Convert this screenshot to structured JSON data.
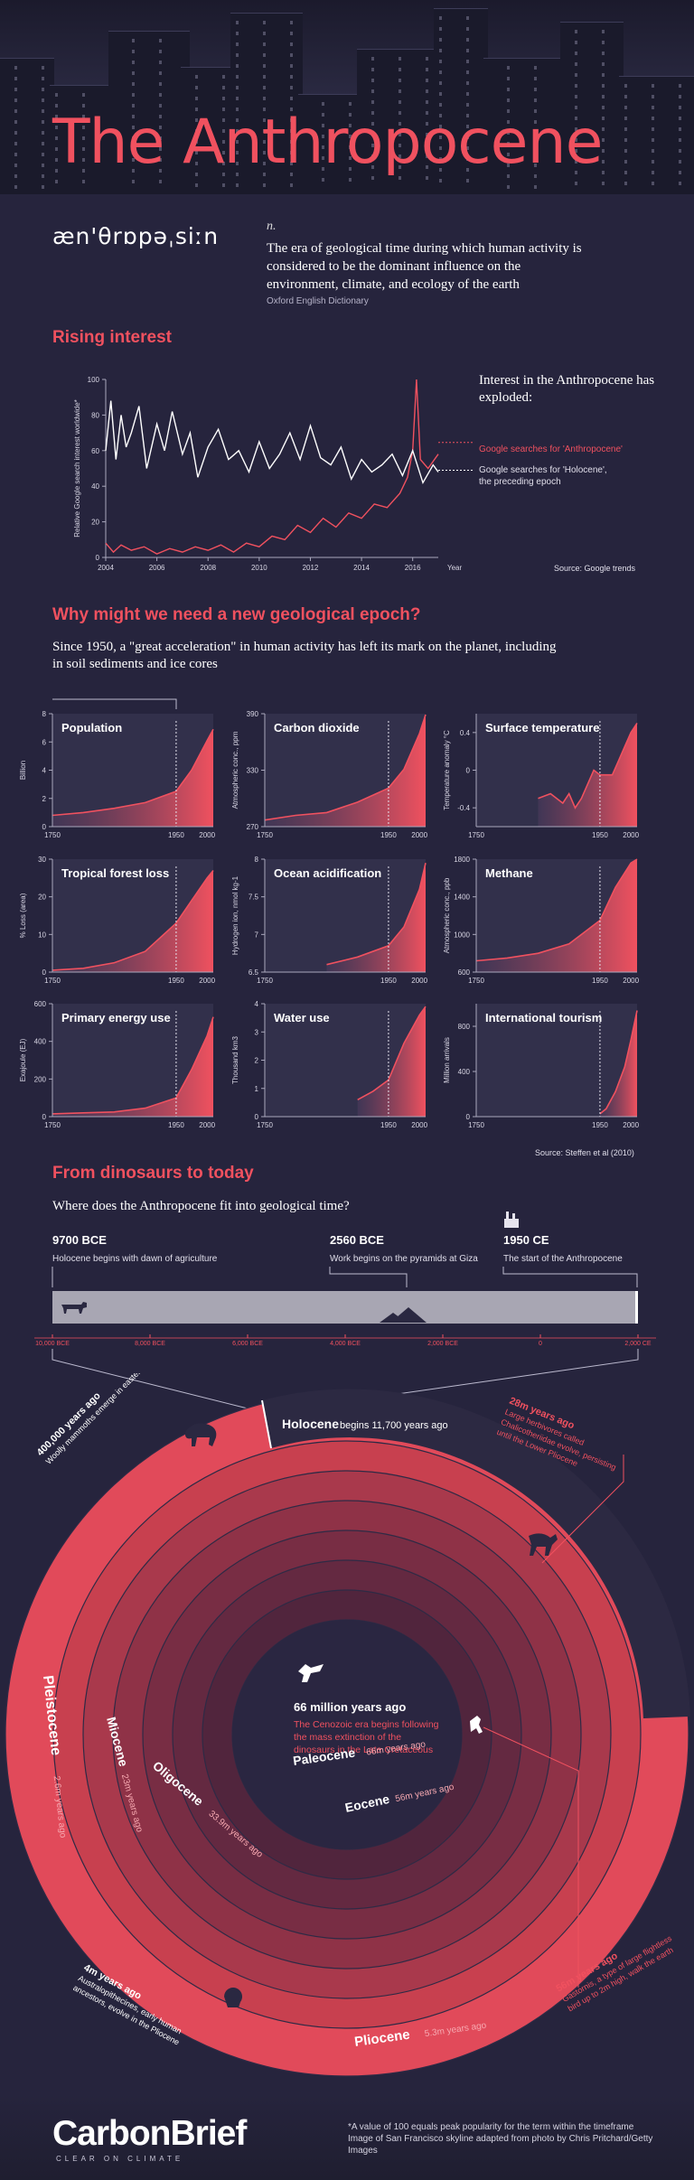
{
  "header": {
    "title": "The Anthropocene"
  },
  "definition": {
    "phonetic": "æn'θrɒpəˌsiːn",
    "part_of_speech": "n.",
    "text": "The era of geological time during which human activity is considered to be the dominant influence on the environment, climate, and ecology of the earth",
    "source": "Oxford English Dictionary"
  },
  "rising": {
    "title": "Rising interest",
    "annotation": "Interest in the Anthropocene has exploded:",
    "legend_anthropocene": "Google searches for 'Anthropocene'",
    "legend_holocene_1": "Google searches for 'Holocene',",
    "legend_holocene_2": "the preceding epoch",
    "ylabel": "Relative Google search interest worldwide*",
    "xlabel": "Year",
    "source": "Source: Google trends",
    "colors": {
      "anthropocene": "#f0515f",
      "holocene": "#ffffff"
    }
  },
  "epoch": {
    "title": "Why might we need a new geological epoch?",
    "intro": "Since 1950, a \"great acceleration\" in human activity has left its mark on the planet, including in soil sediments and ice cores",
    "source": "Source: Steffen et al (2010)"
  },
  "geo": {
    "title": "From dinosaurs to today",
    "question": "Where does the Anthropocene fit into geological time?",
    "events": [
      {
        "year": "9700 BCE",
        "desc": "Holocene begins with dawn of agriculture"
      },
      {
        "year": "2560 BCE",
        "desc": "Work begins on the pyramids at Giza"
      },
      {
        "year": "1950 CE",
        "desc": "The start of the Anthropocene"
      }
    ],
    "scale": [
      "10,000 BCE",
      "8,000 BCE",
      "6,000 BCE",
      "4,000 BCE",
      "2,000 BCE",
      "0",
      "2,000 CE"
    ],
    "holocene_label": "Holocene",
    "holocene_sub": "begins 11,700 years ago",
    "center_title": "66 million years ago",
    "center_text": "The Cenozoic era begins following the mass extinction of the dinosaurs in the Late Cretaceous",
    "ring_labels": [
      {
        "name": "Paleocene",
        "sub": "66m years ago"
      },
      {
        "name": "Eocene",
        "sub": "56m years ago"
      },
      {
        "name": "Oligocene",
        "sub": "33.9m years ago"
      },
      {
        "name": "Miocene",
        "sub": "23m years ago"
      },
      {
        "name": "Pliocene",
        "sub": "5.3m years ago"
      },
      {
        "name": "Pleistocene",
        "sub": "2.6m years ago"
      }
    ],
    "notes": {
      "n400k_title": "400,000 years ago",
      "n400k_text": "Woolly mammoths emerge in eastern Asia",
      "n28m_title": "28m years ago",
      "n28m_text": "Large herbivores called Chalicotheriidae evolve, persisting until the Lower Pliocene",
      "n4m_title": "4m years ago",
      "n4m_text": "Australopithecines, early human ancestors, evolve in the Pliocene",
      "n56m_title": "56m years ago",
      "n56m_text": "Gastornis, a type of large flightless bird up to 2m high, walk the earth"
    }
  },
  "footer": {
    "logo": "CarbonBrief",
    "logo_sub": "CLEAR ON CLIMATE",
    "note1": "*A value of 100 equals peak popularity for the term within the timeframe",
    "note2": "Image of San Francisco skyline adapted from photo by Chris Pritchard/Getty Images"
  },
  "chart_data": [
    {
      "type": "line",
      "title": "Rising interest",
      "xlabel": "Year",
      "ylabel": "Relative Google search interest worldwide*",
      "xlim": [
        2004,
        2017
      ],
      "ylim": [
        0,
        100
      ],
      "xticks": [
        2004,
        2006,
        2008,
        2010,
        2012,
        2014,
        2016
      ],
      "yticks": [
        0,
        20,
        40,
        60,
        80,
        100
      ],
      "series": [
        {
          "name": "Google searches for 'Anthropocene'",
          "color": "#f0515f",
          "x": [
            2004,
            2004.3,
            2004.6,
            2005,
            2005.5,
            2006,
            2006.5,
            2007,
            2007.5,
            2008,
            2008.5,
            2009,
            2009.5,
            2010,
            2010.5,
            2011,
            2011.5,
            2012,
            2012.5,
            2013,
            2013.5,
            2014,
            2014.5,
            2015,
            2015.5,
            2015.8,
            2016,
            2016.15,
            2016.3,
            2016.6,
            2017
          ],
          "y": [
            8,
            3,
            7,
            4,
            6,
            2,
            5,
            3,
            6,
            4,
            7,
            3,
            8,
            6,
            12,
            10,
            18,
            14,
            22,
            17,
            25,
            22,
            30,
            28,
            36,
            45,
            60,
            100,
            55,
            50,
            58
          ]
        },
        {
          "name": "Google searches for 'Holocene', the preceding epoch",
          "color": "#ffffff",
          "x": [
            2004,
            2004.2,
            2004.4,
            2004.6,
            2004.8,
            2005,
            2005.3,
            2005.6,
            2006,
            2006.3,
            2006.6,
            2007,
            2007.3,
            2007.6,
            2008,
            2008.4,
            2008.8,
            2009.2,
            2009.6,
            2010,
            2010.4,
            2010.8,
            2011.2,
            2011.6,
            2012,
            2012.4,
            2012.8,
            2013.2,
            2013.6,
            2014,
            2014.4,
            2014.8,
            2015.2,
            2015.6,
            2016,
            2016.4,
            2016.8,
            2017
          ],
          "y": [
            60,
            88,
            55,
            80,
            62,
            70,
            85,
            50,
            75,
            60,
            82,
            58,
            70,
            45,
            62,
            72,
            55,
            60,
            48,
            65,
            50,
            58,
            70,
            55,
            74,
            56,
            52,
            62,
            44,
            55,
            48,
            52,
            58,
            46,
            60,
            42,
            52,
            48
          ]
        }
      ]
    },
    {
      "type": "area",
      "title": "Population",
      "ylabel": "Billion",
      "xlim": [
        1750,
        2010
      ],
      "ylim": [
        0,
        8
      ],
      "yticks": [
        0,
        2,
        4,
        6,
        8
      ],
      "xticks": [
        1750,
        1950,
        2000
      ],
      "marker": 1950,
      "x": [
        1750,
        1800,
        1850,
        1900,
        1950,
        1975,
        2000,
        2010
      ],
      "y": [
        0.8,
        1.0,
        1.3,
        1.7,
        2.5,
        4.0,
        6.1,
        6.9
      ]
    },
    {
      "type": "area",
      "title": "Carbon dioxide",
      "ylabel": "Atmospheric conc., ppm",
      "xlim": [
        1750,
        2010
      ],
      "ylim": [
        270,
        390
      ],
      "yticks": [
        270,
        330,
        390
      ],
      "xticks": [
        1750,
        1950,
        2000
      ],
      "marker": 1950,
      "x": [
        1750,
        1800,
        1850,
        1900,
        1950,
        1975,
        2000,
        2010
      ],
      "y": [
        277,
        282,
        285,
        296,
        311,
        331,
        369,
        389
      ]
    },
    {
      "type": "area",
      "title": "Surface temperature",
      "ylabel": "Temperature anomaly °C",
      "xlim": [
        1750,
        2010
      ],
      "ylim": [
        -0.6,
        0.6
      ],
      "yticks": [
        -0.4,
        0,
        0.4
      ],
      "xticks": [
        1750,
        1950,
        2000
      ],
      "marker": 1950,
      "x": [
        1850,
        1870,
        1880,
        1890,
        1900,
        1910,
        1920,
        1940,
        1950,
        1960,
        1970,
        1980,
        1990,
        2000,
        2010
      ],
      "y": [
        -0.3,
        -0.25,
        -0.3,
        -0.35,
        -0.25,
        -0.4,
        -0.3,
        0.0,
        -0.05,
        -0.05,
        -0.05,
        0.1,
        0.25,
        0.4,
        0.5
      ]
    },
    {
      "type": "area",
      "title": "Tropical forest loss",
      "ylabel": "% Loss (area)",
      "xlim": [
        1750,
        2010
      ],
      "ylim": [
        0,
        30
      ],
      "yticks": [
        0,
        10,
        20,
        30
      ],
      "xticks": [
        1750,
        1950,
        2000
      ],
      "marker": 1950,
      "x": [
        1750,
        1800,
        1850,
        1900,
        1950,
        1975,
        2000,
        2010
      ],
      "y": [
        0.5,
        1,
        2.5,
        5.5,
        13,
        19,
        25,
        27
      ]
    },
    {
      "type": "area",
      "title": "Ocean acidification",
      "ylabel": "Hydrogen ion, nmol kg-1",
      "xlim": [
        1750,
        2010
      ],
      "ylim": [
        6.5,
        8.0
      ],
      "yticks": [
        6.5,
        7.0,
        7.5,
        8.0
      ],
      "xticks": [
        1750,
        1950,
        2000
      ],
      "marker": 1950,
      "x": [
        1850,
        1900,
        1950,
        1975,
        2000,
        2010
      ],
      "y": [
        6.6,
        6.7,
        6.85,
        7.1,
        7.6,
        7.95
      ]
    },
    {
      "type": "area",
      "title": "Methane",
      "ylabel": "Atmospheric conc., ppb",
      "xlim": [
        1750,
        2010
      ],
      "ylim": [
        600,
        1800
      ],
      "yticks": [
        600,
        1000,
        1400,
        1800
      ],
      "xticks": [
        1750,
        1950,
        2000
      ],
      "marker": 1950,
      "x": [
        1750,
        1800,
        1850,
        1900,
        1950,
        1975,
        2000,
        2010
      ],
      "y": [
        720,
        750,
        800,
        900,
        1150,
        1500,
        1760,
        1800
      ]
    },
    {
      "type": "area",
      "title": "Primary energy use",
      "ylabel": "Exajoule (EJ)",
      "xlim": [
        1750,
        2010
      ],
      "ylim": [
        0,
        600
      ],
      "yticks": [
        0,
        200,
        400,
        600
      ],
      "xticks": [
        1750,
        1950,
        2000
      ],
      "marker": 1950,
      "x": [
        1750,
        1800,
        1850,
        1900,
        1950,
        1975,
        2000,
        2010
      ],
      "y": [
        15,
        20,
        25,
        45,
        100,
        250,
        430,
        530
      ]
    },
    {
      "type": "area",
      "title": "Water use",
      "ylabel": "Thousand km3",
      "xlim": [
        1750,
        2010
      ],
      "ylim": [
        0,
        4
      ],
      "yticks": [
        0,
        1,
        2,
        3,
        4
      ],
      "xticks": [
        1750,
        1950,
        2000
      ],
      "marker": 1950,
      "x": [
        1900,
        1925,
        1950,
        1975,
        2000,
        2010
      ],
      "y": [
        0.6,
        0.9,
        1.3,
        2.6,
        3.6,
        3.9
      ]
    },
    {
      "type": "area",
      "title": "International tourism",
      "ylabel": "Million arrivals",
      "xlim": [
        1750,
        2010
      ],
      "ylim": [
        0,
        1000
      ],
      "yticks": [
        0,
        400,
        800
      ],
      "xticks": [
        1750,
        1950,
        2000
      ],
      "marker": 1950,
      "x": [
        1950,
        1960,
        1975,
        1990,
        2000,
        2010
      ],
      "y": [
        25,
        70,
        220,
        440,
        680,
        940
      ]
    }
  ]
}
